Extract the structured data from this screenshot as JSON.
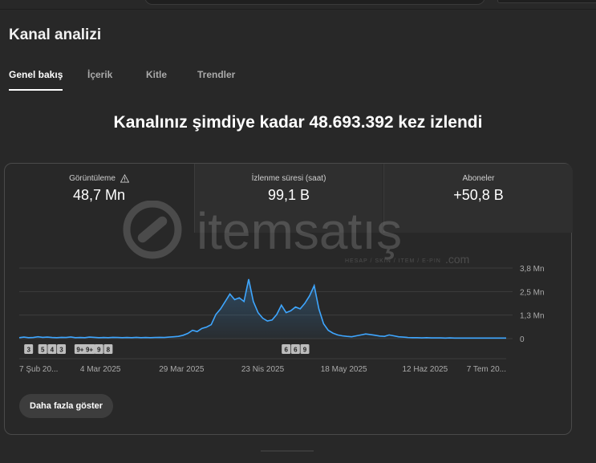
{
  "page_title": "Kanal analizi",
  "tabs": [
    {
      "label": "Genel bakış",
      "active": true
    },
    {
      "label": "İçerik",
      "active": false
    },
    {
      "label": "Kitle",
      "active": false
    },
    {
      "label": "Trendler",
      "active": false
    }
  ],
  "headline": "Kanalınız şimdiye kadar 48.693.392 kez izlendi",
  "metrics": [
    {
      "label": "Görüntüleme",
      "value": "48,7 Mn",
      "icon": "warning-icon"
    },
    {
      "label": "İzlenme süresi (saat)",
      "value": "99,1 B"
    },
    {
      "label": "Aboneler",
      "value": "+50,8 B"
    }
  ],
  "watermark": {
    "text": "itemsatış",
    "subtext": "HESAP / SKIN / ITEM / E-PIN",
    "suffix": ".com"
  },
  "chart_data": {
    "type": "area",
    "y_ticks": [
      "3,8 Mn",
      "2,5 Mn",
      "1,3 Mn",
      "0"
    ],
    "x_ticks": [
      "7 Şub 20...",
      "4 Mar 2025",
      "29 Mar 2025",
      "23 Nis 2025",
      "18 May 2025",
      "12 Haz 2025",
      "7 Tem 20..."
    ],
    "ylim": [
      0,
      3.8
    ],
    "yunit": "Mn",
    "line_color": "#3ea6ff",
    "values": [
      0.05,
      0.08,
      0.05,
      0.06,
      0.1,
      0.07,
      0.08,
      0.06,
      0.05,
      0.07,
      0.06,
      0.09,
      0.05,
      0.06,
      0.05,
      0.08,
      0.07,
      0.05,
      0.06,
      0.05,
      0.07,
      0.06,
      0.05,
      0.06,
      0.05,
      0.07,
      0.05,
      0.06,
      0.05,
      0.06,
      0.07,
      0.06,
      0.08,
      0.1,
      0.12,
      0.18,
      0.28,
      0.45,
      0.38,
      0.55,
      0.62,
      0.75,
      1.3,
      1.6,
      2.0,
      2.4,
      2.1,
      2.2,
      2.0,
      3.2,
      2.0,
      1.4,
      1.1,
      0.95,
      1.0,
      1.3,
      1.8,
      1.4,
      1.5,
      1.7,
      1.6,
      1.9,
      2.3,
      2.85,
      1.6,
      0.8,
      0.45,
      0.3,
      0.2,
      0.15,
      0.12,
      0.1,
      0.15,
      0.2,
      0.25,
      0.22,
      0.18,
      0.14,
      0.12,
      0.2,
      0.15,
      0.1,
      0.08,
      0.06,
      0.05,
      0.05,
      0.04,
      0.05,
      0.04,
      0.04,
      0.04,
      0.03,
      0.04,
      0.03,
      0.03,
      0.03,
      0.03,
      0.03,
      0.03,
      0.03,
      0.03,
      0.03,
      0.03,
      0.03,
      0.03
    ],
    "markers": [
      {
        "label": "3",
        "index": 2
      },
      {
        "label": "5",
        "index": 5
      },
      {
        "label": "4",
        "index": 7
      },
      {
        "label": "3",
        "index": 9
      },
      {
        "label": "9+",
        "index": 13
      },
      {
        "label": "9+",
        "index": 15
      },
      {
        "label": "9",
        "index": 17
      },
      {
        "label": "8",
        "index": 19
      },
      {
        "label": "6",
        "index": 57
      },
      {
        "label": "6",
        "index": 59
      },
      {
        "label": "9",
        "index": 61
      }
    ]
  },
  "show_more_label": "Daha fazla göster"
}
